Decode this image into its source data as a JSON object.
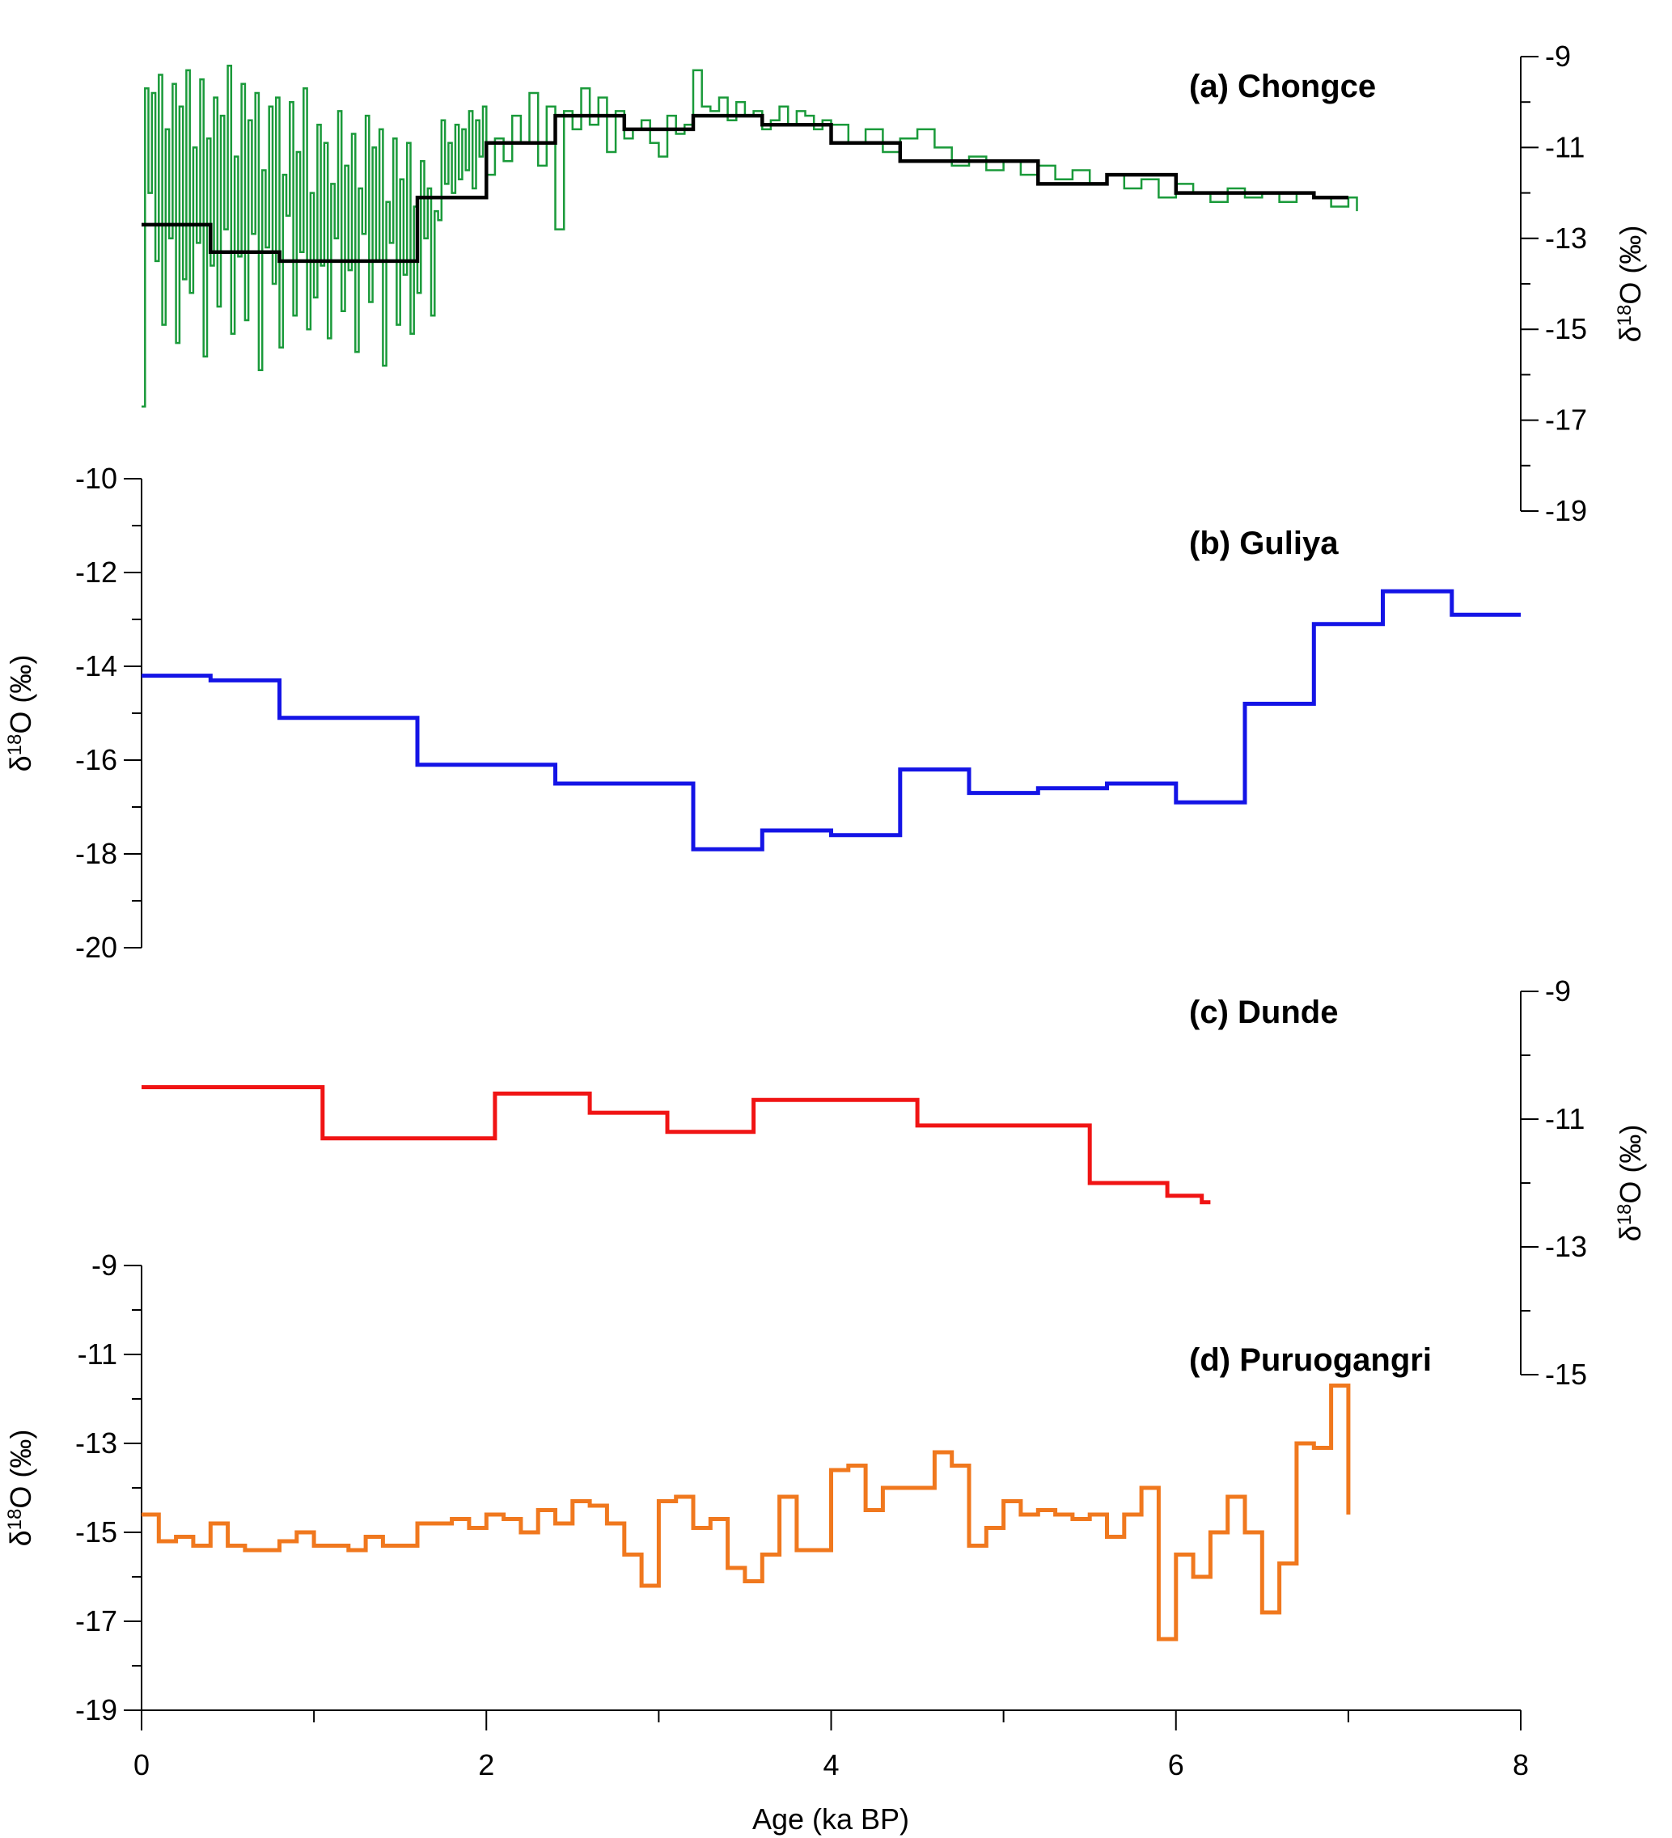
{
  "x_axis": {
    "label": "Age (ka BP)",
    "ticks": [
      "0",
      "2",
      "4",
      "6",
      "8"
    ],
    "range": [
      0,
      8
    ]
  },
  "chart_data": [
    {
      "type": "line",
      "title": "(a) Chongce",
      "ylabel": "δ18O (‰)",
      "y_axis_side": "right",
      "ylim": [
        -19,
        -9
      ],
      "y_ticks": [
        "-9",
        "-11",
        "-13",
        "-15",
        "-17",
        "-19"
      ],
      "grid": false,
      "legend": "none",
      "series": [
        {
          "color": "#1a9a3a",
          "style": "step",
          "x": [
            0.0,
            0.02,
            0.04,
            0.06,
            0.08,
            0.1,
            0.12,
            0.14,
            0.16,
            0.18,
            0.2,
            0.22,
            0.24,
            0.26,
            0.28,
            0.3,
            0.32,
            0.34,
            0.36,
            0.38,
            0.4,
            0.42,
            0.44,
            0.46,
            0.48,
            0.5,
            0.52,
            0.54,
            0.56,
            0.58,
            0.6,
            0.62,
            0.64,
            0.66,
            0.68,
            0.7,
            0.72,
            0.74,
            0.76,
            0.78,
            0.8,
            0.82,
            0.84,
            0.86,
            0.88,
            0.9,
            0.92,
            0.94,
            0.96,
            0.98,
            1.0,
            1.02,
            1.04,
            1.06,
            1.08,
            1.1,
            1.12,
            1.14,
            1.16,
            1.18,
            1.2,
            1.22,
            1.24,
            1.26,
            1.28,
            1.3,
            1.32,
            1.34,
            1.36,
            1.38,
            1.4,
            1.42,
            1.44,
            1.46,
            1.48,
            1.5,
            1.52,
            1.54,
            1.56,
            1.58,
            1.6,
            1.62,
            1.64,
            1.66,
            1.68,
            1.7,
            1.72,
            1.74,
            1.76,
            1.78,
            1.8,
            1.82,
            1.84,
            1.86,
            1.88,
            1.9,
            1.92,
            1.94,
            1.96,
            1.98,
            2.0,
            2.05,
            2.1,
            2.15,
            2.2,
            2.25,
            2.3,
            2.35,
            2.4,
            2.45,
            2.5,
            2.55,
            2.6,
            2.65,
            2.7,
            2.75,
            2.8,
            2.85,
            2.9,
            2.95,
            3.0,
            3.05,
            3.1,
            3.15,
            3.2,
            3.25,
            3.3,
            3.35,
            3.4,
            3.45,
            3.5,
            3.55,
            3.6,
            3.65,
            3.7,
            3.75,
            3.8,
            3.85,
            3.9,
            3.95,
            4.0,
            4.1,
            4.2,
            4.3,
            4.4,
            4.5,
            4.6,
            4.7,
            4.8,
            4.9,
            5.0,
            5.1,
            5.2,
            5.3,
            5.4,
            5.5,
            5.6,
            5.7,
            5.8,
            5.9,
            6.0,
            6.1,
            6.2,
            6.3,
            6.4,
            6.5,
            6.6,
            6.7,
            6.8,
            6.9,
            7.0,
            7.05
          ],
          "values": [
            -16.7,
            -9.7,
            -12.0,
            -9.8,
            -13.5,
            -9.4,
            -14.9,
            -10.6,
            -13.0,
            -9.6,
            -15.3,
            -10.1,
            -13.9,
            -9.3,
            -14.2,
            -11.0,
            -13.1,
            -9.5,
            -15.6,
            -10.8,
            -13.6,
            -9.9,
            -14.5,
            -10.3,
            -12.8,
            -9.2,
            -15.1,
            -11.2,
            -13.4,
            -9.6,
            -14.8,
            -10.4,
            -12.9,
            -9.8,
            -15.9,
            -11.5,
            -13.2,
            -10.1,
            -14.0,
            -9.9,
            -15.4,
            -11.6,
            -12.5,
            -10.0,
            -14.7,
            -11.1,
            -13.3,
            -9.7,
            -15.0,
            -12.0,
            -14.3,
            -10.5,
            -13.6,
            -10.9,
            -15.2,
            -11.8,
            -13.0,
            -10.2,
            -14.6,
            -11.4,
            -13.7,
            -10.7,
            -15.5,
            -11.9,
            -12.9,
            -10.3,
            -14.4,
            -11.0,
            -13.5,
            -10.6,
            -15.8,
            -12.2,
            -13.1,
            -10.8,
            -14.9,
            -11.7,
            -13.8,
            -10.9,
            -15.1,
            -12.3,
            -14.2,
            -11.3,
            -13.0,
            -11.9,
            -14.7,
            -12.4,
            -12.6,
            -10.4,
            -11.8,
            -10.9,
            -12.0,
            -10.5,
            -11.7,
            -10.6,
            -11.5,
            -10.2,
            -11.9,
            -10.4,
            -11.2,
            -10.1,
            -11.6,
            -10.8,
            -11.3,
            -10.3,
            -10.9,
            -9.8,
            -11.4,
            -10.1,
            -12.8,
            -10.2,
            -10.6,
            -9.7,
            -10.5,
            -9.9,
            -11.1,
            -10.2,
            -10.8,
            -10.6,
            -10.4,
            -10.9,
            -11.2,
            -10.3,
            -10.7,
            -10.5,
            -9.3,
            -10.1,
            -10.2,
            -9.9,
            -10.4,
            -10.0,
            -10.3,
            -10.2,
            -10.6,
            -10.4,
            -10.1,
            -10.5,
            -10.2,
            -10.3,
            -10.6,
            -10.4,
            -10.5,
            -10.9,
            -10.6,
            -11.1,
            -10.8,
            -10.6,
            -11.0,
            -11.4,
            -11.2,
            -11.5,
            -11.3,
            -11.6,
            -11.4,
            -11.7,
            -11.5,
            -11.8,
            -11.6,
            -11.9,
            -11.7,
            -12.1,
            -11.8,
            -12.0,
            -12.2,
            -11.9,
            -12.1,
            -12.0,
            -12.2,
            -12.0,
            -12.1,
            -12.3,
            -12.1,
            -12.4
          ]
        },
        {
          "color": "#000000",
          "style": "step",
          "x": [
            0.0,
            0.4,
            0.8,
            1.2,
            1.6,
            2.0,
            2.4,
            2.8,
            3.2,
            3.6,
            4.0,
            4.4,
            4.8,
            5.2,
            5.6,
            6.0,
            6.4,
            6.8,
            7.0
          ],
          "values": [
            -12.7,
            -13.3,
            -13.5,
            -13.5,
            -12.1,
            -10.9,
            -10.3,
            -10.6,
            -10.3,
            -10.5,
            -10.9,
            -11.3,
            -11.3,
            -11.8,
            -11.6,
            -12.0,
            -12.0,
            -12.1,
            -12.1
          ]
        }
      ]
    },
    {
      "type": "line",
      "title": "(b) Guliya",
      "ylabel": "δ18O (‰)",
      "y_axis_side": "left",
      "ylim": [
        -20,
        -10
      ],
      "y_ticks": [
        "-10",
        "-12",
        "-14",
        "-16",
        "-18",
        "-20"
      ],
      "grid": false,
      "legend": "none",
      "series": [
        {
          "color": "#1414e6",
          "style": "step",
          "x": [
            0.0,
            0.4,
            0.8,
            1.2,
            1.6,
            2.0,
            2.4,
            2.8,
            3.2,
            3.6,
            4.0,
            4.4,
            4.8,
            5.2,
            5.6,
            6.0,
            6.4,
            6.8,
            7.2,
            7.6,
            8.0
          ],
          "values": [
            -14.2,
            -14.3,
            -15.1,
            -15.1,
            -16.1,
            -16.1,
            -16.5,
            -16.5,
            -17.9,
            -17.5,
            -17.6,
            -16.2,
            -16.7,
            -16.6,
            -16.5,
            -16.9,
            -14.8,
            -13.1,
            -12.4,
            -12.9,
            -12.9
          ]
        }
      ]
    },
    {
      "type": "line",
      "title": "(c) Dunde",
      "ylabel": "δ18O (‰)",
      "y_axis_side": "right",
      "ylim": [
        -15,
        -9
      ],
      "y_ticks": [
        "-9",
        "-11",
        "-13",
        "-15"
      ],
      "grid": false,
      "legend": "none",
      "series": [
        {
          "color": "#f01414",
          "style": "step",
          "x": [
            0.0,
            1.05,
            2.05,
            2.6,
            3.05,
            3.55,
            4.5,
            5.5,
            5.95,
            6.15,
            6.2
          ],
          "values": [
            -10.5,
            -11.3,
            -10.6,
            -10.9,
            -11.2,
            -10.7,
            -11.1,
            -12.0,
            -12.2,
            -12.3,
            -12.3
          ]
        }
      ]
    },
    {
      "type": "line",
      "title": "(d) Puruogangri",
      "ylabel": "δ18O (‰)",
      "y_axis_side": "left",
      "ylim": [
        -19,
        -9
      ],
      "y_ticks": [
        "-9",
        "-11",
        "-13",
        "-15",
        "-17",
        "-19"
      ],
      "grid": false,
      "legend": "none",
      "series": [
        {
          "color": "#f0781e",
          "style": "step",
          "x": [
            0.0,
            0.1,
            0.2,
            0.3,
            0.4,
            0.5,
            0.6,
            0.7,
            0.8,
            0.9,
            1.0,
            1.1,
            1.2,
            1.3,
            1.4,
            1.5,
            1.6,
            1.7,
            1.8,
            1.9,
            2.0,
            2.1,
            2.2,
            2.3,
            2.4,
            2.5,
            2.6,
            2.7,
            2.8,
            2.9,
            3.0,
            3.1,
            3.2,
            3.3,
            3.4,
            3.5,
            3.6,
            3.7,
            3.8,
            3.9,
            4.0,
            4.1,
            4.2,
            4.3,
            4.4,
            4.5,
            4.6,
            4.7,
            4.8,
            4.9,
            5.0,
            5.1,
            5.2,
            5.3,
            5.4,
            5.5,
            5.6,
            5.7,
            5.8,
            5.9,
            6.0,
            6.1,
            6.2,
            6.3,
            6.4,
            6.5,
            6.6,
            6.7,
            6.8,
            6.9,
            7.0
          ],
          "values": [
            -14.6,
            -15.2,
            -15.1,
            -15.3,
            -14.8,
            -15.3,
            -15.4,
            -15.4,
            -15.2,
            -15.0,
            -15.3,
            -15.3,
            -15.4,
            -15.1,
            -15.3,
            -15.3,
            -14.8,
            -14.8,
            -14.7,
            -14.9,
            -14.6,
            -14.7,
            -15.0,
            -14.5,
            -14.8,
            -14.3,
            -14.4,
            -14.8,
            -15.5,
            -16.2,
            -14.3,
            -14.2,
            -14.9,
            -14.7,
            -15.8,
            -16.1,
            -15.5,
            -14.2,
            -15.4,
            -15.4,
            -13.6,
            -13.5,
            -14.5,
            -14.0,
            -14.0,
            -14.0,
            -13.2,
            -13.5,
            -15.3,
            -14.9,
            -14.3,
            -14.6,
            -14.5,
            -14.6,
            -14.7,
            -14.6,
            -15.1,
            -14.6,
            -14.0,
            -17.4,
            -15.5,
            -16.0,
            -15.0,
            -14.2,
            -15.0,
            -16.8,
            -15.7,
            -13.0,
            -13.1,
            -11.7,
            -14.6
          ]
        }
      ]
    }
  ]
}
